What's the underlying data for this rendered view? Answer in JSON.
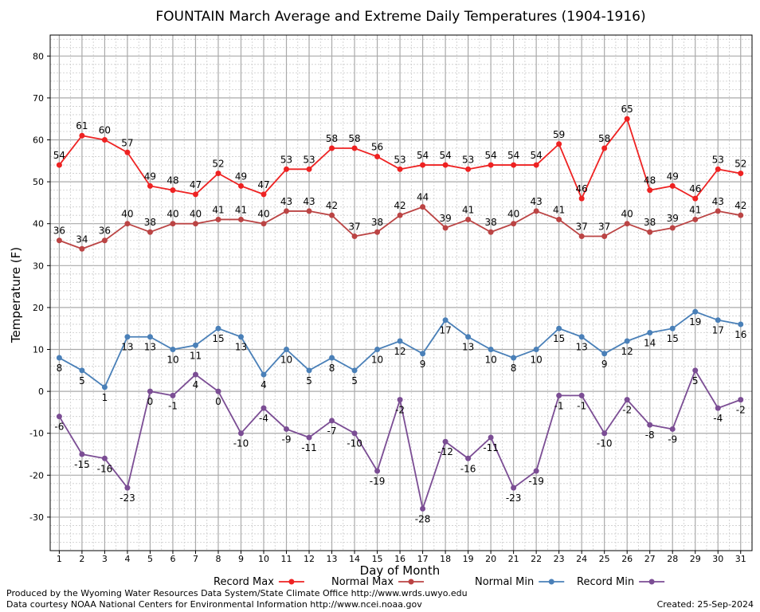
{
  "chart_data": {
    "type": "line",
    "title": "FOUNTAIN March Average and Extreme Daily Temperatures (1904-1916)",
    "xlabel": "Day of Month",
    "ylabel": "Temperature (F)",
    "x": [
      1,
      2,
      3,
      4,
      5,
      6,
      7,
      8,
      9,
      10,
      11,
      12,
      13,
      14,
      15,
      16,
      17,
      18,
      19,
      20,
      21,
      22,
      23,
      24,
      25,
      26,
      27,
      28,
      29,
      30,
      31
    ],
    "xlim": [
      0.6,
      31.5
    ],
    "ylim": [
      -38,
      85
    ],
    "yticks": [
      -30,
      -20,
      -10,
      0,
      10,
      20,
      30,
      40,
      50,
      60,
      70,
      80
    ],
    "grid": true,
    "legend_position": "bottom",
    "series": [
      {
        "name": "Record Max",
        "color": "#ee2222",
        "label_position": "above",
        "values": [
          54,
          61,
          60,
          57,
          49,
          48,
          47,
          52,
          49,
          47,
          53,
          53,
          58,
          58,
          56,
          53,
          54,
          54,
          53,
          54,
          54,
          54,
          59,
          46,
          58,
          65,
          48,
          49,
          46,
          53,
          52
        ]
      },
      {
        "name": "Normal Max",
        "color": "#bb4444",
        "label_position": "above",
        "values": [
          36,
          34,
          36,
          40,
          38,
          40,
          40,
          41,
          41,
          40,
          43,
          43,
          42,
          37,
          38,
          42,
          44,
          39,
          41,
          38,
          40,
          43,
          41,
          37,
          37,
          40,
          38,
          39,
          41,
          43,
          42
        ]
      },
      {
        "name": "Normal Min",
        "color": "#4a80b8",
        "label_position": "below",
        "values": [
          8,
          5,
          1,
          13,
          13,
          10,
          11,
          15,
          13,
          4,
          10,
          5,
          8,
          5,
          10,
          12,
          9,
          17,
          13,
          10,
          8,
          10,
          15,
          13,
          9,
          12,
          14,
          15,
          19,
          17,
          16
        ]
      },
      {
        "name": "Record Min",
        "color": "#7b4d94",
        "label_position": "below",
        "values": [
          -6,
          -15,
          -16,
          -23,
          0,
          -1,
          4,
          0,
          -10,
          -4,
          -9,
          -11,
          -7,
          -10,
          -19,
          -2,
          -28,
          -12,
          -16,
          -11,
          -23,
          -19,
          -1,
          -1,
          -10,
          -2,
          -8,
          -9,
          5,
          -4,
          -2
        ]
      }
    ]
  },
  "footer": {
    "produced_by": "Produced by the Wyoming Water Resources Data System/State Climate Office http://www.wrds.uwyo.edu",
    "courtesy": "Data courtesy NOAA National Centers for Environmental Information http://www.ncei.noaa.gov",
    "created": "Created:  25-Sep-2024"
  }
}
